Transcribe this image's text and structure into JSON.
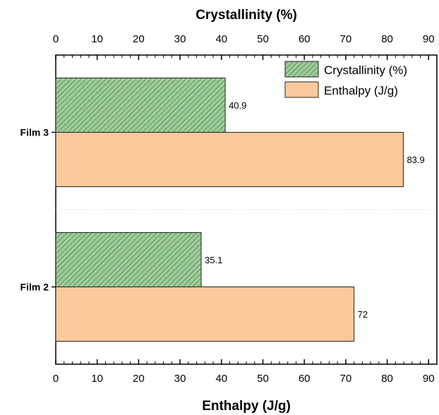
{
  "chart_data": {
    "type": "bar",
    "orientation": "horizontal",
    "categories": [
      "Film 3",
      "Film 2"
    ],
    "series": [
      {
        "name": "Crystallinity (%)",
        "values": [
          40.9,
          35.1
        ],
        "labels": [
          "40.9",
          "35.1"
        ],
        "color": "#9dcc9a",
        "hatch": true,
        "axis": "top"
      },
      {
        "name": "Enthalpy (J/g)",
        "values": [
          83.9,
          72
        ],
        "labels": [
          "83.9",
          "72"
        ],
        "color": "#fcc99c",
        "hatch": false,
        "axis": "bottom"
      }
    ],
    "top_axis": {
      "label": "Crystallinity (%)",
      "range": [
        0,
        92
      ],
      "ticks": [
        0,
        10,
        20,
        30,
        40,
        50,
        60,
        70,
        80,
        90
      ]
    },
    "bottom_axis": {
      "label": "Enthalpy (J/g)",
      "range": [
        0,
        92
      ],
      "ticks": [
        0,
        10,
        20,
        30,
        40,
        50,
        60,
        70,
        80,
        90
      ]
    },
    "legend_position": "top-right",
    "grid": false
  }
}
